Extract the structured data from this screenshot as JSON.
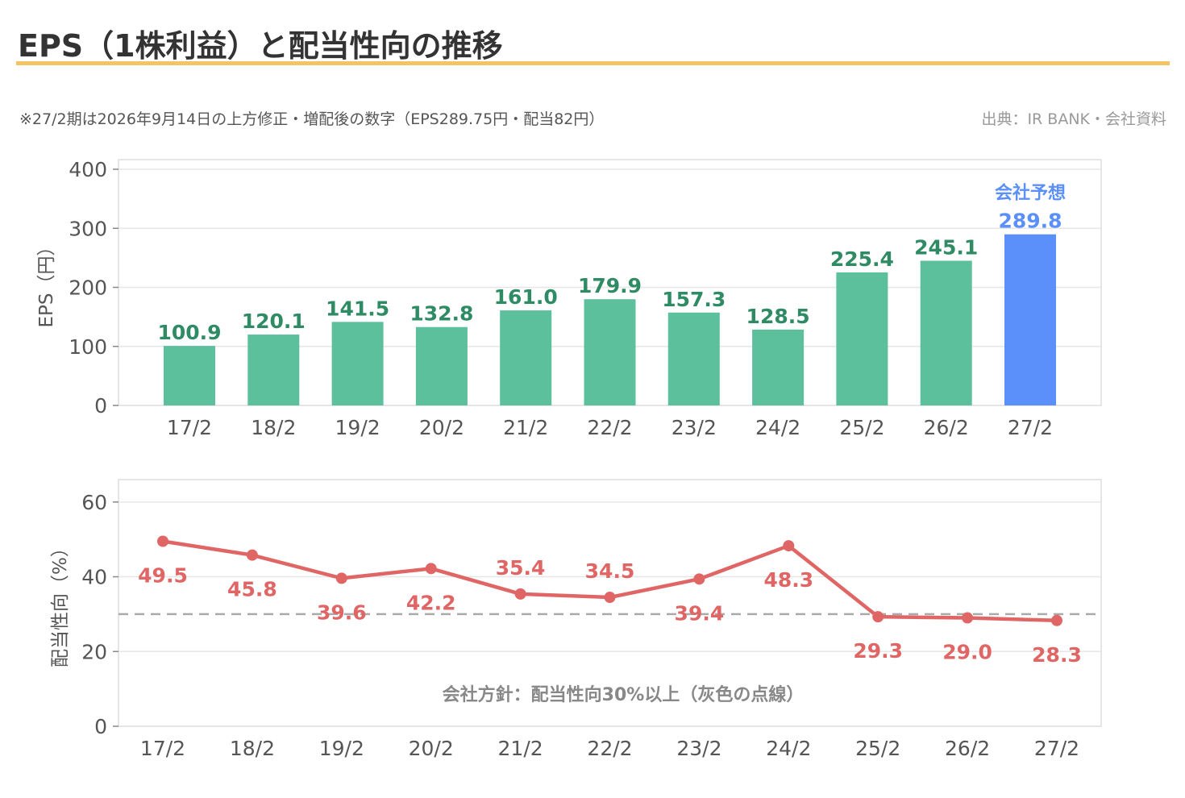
{
  "header": {
    "title": "EPS（1株利益）と配当性向の推移",
    "note": "※27/2期は2026年9月14日の上方修正・増配後の数字（EPS289.75円・配当82円）",
    "source": "出典：IR BANK・会社資料"
  },
  "colors": {
    "bar": "#5cc09d",
    "forecast_bar": "#5b8ff9",
    "bar_label": "#2e8b64",
    "forecast_label": "#5b8ff9",
    "line": "#e06666",
    "reference": "#aaaaaa",
    "accent_rule": "#f2c464"
  },
  "chart_data": [
    {
      "type": "bar",
      "title": "",
      "categories": [
        "17/2",
        "18/2",
        "19/2",
        "20/2",
        "21/2",
        "22/2",
        "23/2",
        "24/2",
        "25/2",
        "26/2",
        "27/2"
      ],
      "values": [
        100.9,
        120.1,
        141.5,
        132.8,
        161.0,
        179.9,
        157.3,
        128.5,
        225.4,
        245.1,
        289.8
      ],
      "value_labels": [
        "100.9",
        "120.1",
        "141.5",
        "132.8",
        "161.0",
        "179.9",
        "157.3",
        "128.5",
        "225.4",
        "245.1",
        "289.8"
      ],
      "xlabel": "",
      "ylabel": "EPS（円）",
      "ylim": [
        0,
        400
      ],
      "yticks": [
        0,
        100,
        200,
        300,
        400
      ],
      "forecast_index": 10,
      "forecast_label": "会社予想",
      "grid": true
    },
    {
      "type": "line",
      "title": "",
      "categories": [
        "17/2",
        "18/2",
        "19/2",
        "20/2",
        "21/2",
        "22/2",
        "23/2",
        "24/2",
        "25/2",
        "26/2",
        "27/2"
      ],
      "values": [
        49.5,
        45.8,
        39.6,
        42.2,
        35.4,
        34.5,
        39.4,
        48.3,
        29.3,
        29.0,
        28.3
      ],
      "value_labels": [
        "49.5",
        "45.8",
        "39.6",
        "42.2",
        "35.4",
        "34.5",
        "39.4",
        "48.3",
        "29.3",
        "29.0",
        "28.3"
      ],
      "label_position": [
        "below",
        "below",
        "below",
        "below",
        "above",
        "above",
        "below",
        "below",
        "below",
        "below",
        "below"
      ],
      "xlabel": "",
      "ylabel": "配当性向（%）",
      "ylim": [
        0,
        66
      ],
      "yticks": [
        0,
        20,
        40,
        60
      ],
      "reference_line": 30,
      "annotation": "会社方針：配当性向30%以上（灰色の点線）",
      "grid": true
    }
  ]
}
